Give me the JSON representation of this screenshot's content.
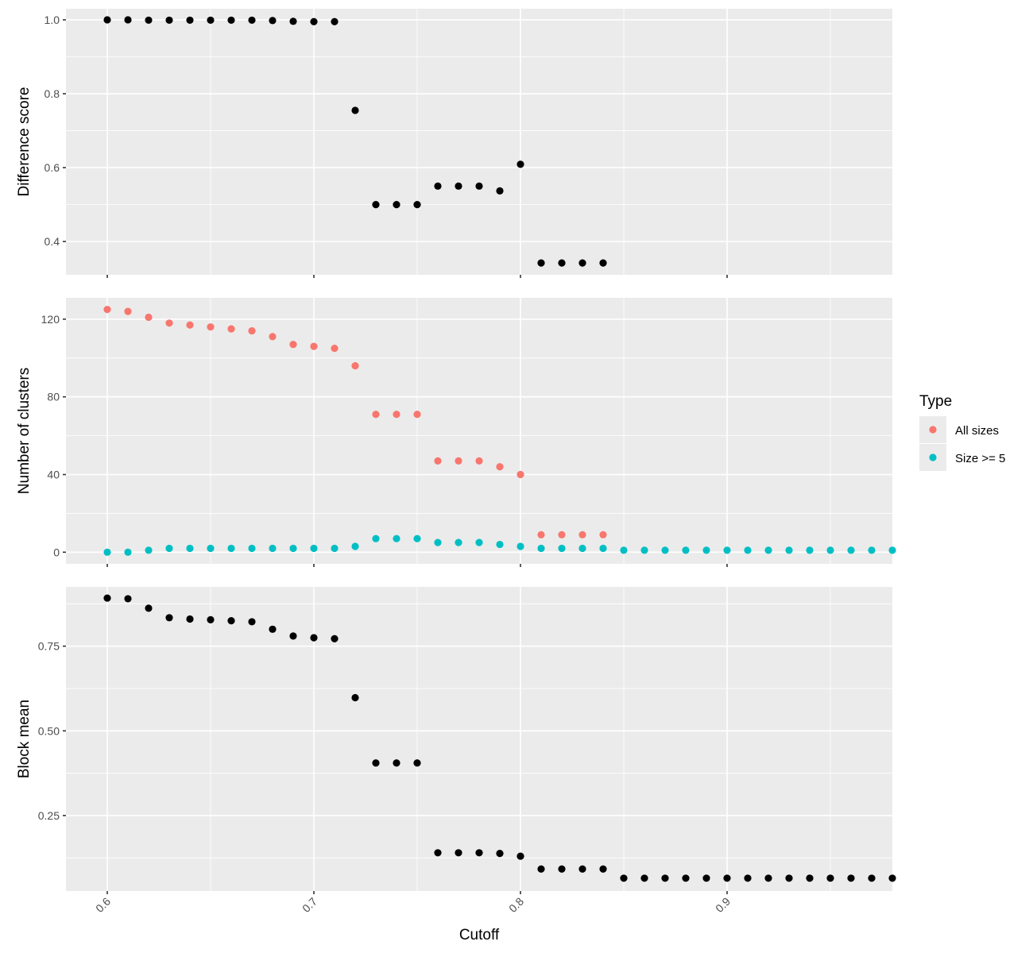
{
  "chart_data": [
    {
      "type": "scatter",
      "panel": "top",
      "ylabel": "Difference score",
      "xlabel": "",
      "xlim": [
        0.58,
        0.98
      ],
      "ylim": [
        0.31,
        1.03
      ],
      "y_ticks": [
        0.4,
        0.6,
        0.8,
        1.0
      ],
      "y_tick_labels": [
        "0.4",
        "0.6",
        "0.8",
        "1.0"
      ],
      "y_minor": [
        0.5,
        0.7,
        0.9
      ],
      "color": "#000000",
      "series": [
        {
          "x": [
            0.6,
            0.61,
            0.62,
            0.63,
            0.64,
            0.65,
            0.66,
            0.67,
            0.68,
            0.69,
            0.7,
            0.71,
            0.72,
            0.73,
            0.74,
            0.75,
            0.76,
            0.77,
            0.78,
            0.79,
            0.8,
            0.81,
            0.82,
            0.83,
            0.84
          ],
          "values": [
            1.0,
            1.0,
            0.999,
            0.999,
            0.999,
            0.999,
            0.999,
            0.999,
            0.998,
            0.996,
            0.995,
            0.995,
            0.755,
            0.5,
            0.5,
            0.5,
            0.55,
            0.55,
            0.55,
            0.537,
            0.609,
            0.342,
            0.342,
            0.342,
            0.342
          ]
        }
      ]
    },
    {
      "type": "scatter",
      "panel": "middle",
      "ylabel": "Number of clusters",
      "xlabel": "",
      "xlim": [
        0.58,
        0.98
      ],
      "ylim": [
        -6,
        131
      ],
      "y_ticks": [
        0,
        40,
        80,
        120
      ],
      "y_tick_labels": [
        "0",
        "40",
        "80",
        "120"
      ],
      "y_minor": [
        20,
        60,
        100
      ],
      "series": [
        {
          "name": "All sizes",
          "color": "#F8766D",
          "x": [
            0.6,
            0.61,
            0.62,
            0.63,
            0.64,
            0.65,
            0.66,
            0.67,
            0.68,
            0.69,
            0.7,
            0.71,
            0.72,
            0.73,
            0.74,
            0.75,
            0.76,
            0.77,
            0.78,
            0.79,
            0.8,
            0.81,
            0.82,
            0.83,
            0.84
          ],
          "values": [
            125,
            124,
            121,
            118,
            117,
            116,
            115,
            114,
            111,
            107,
            106,
            105,
            96,
            71,
            71,
            71,
            47,
            47,
            47,
            44,
            40,
            9,
            9,
            9,
            9
          ]
        },
        {
          "name": "Size >= 5",
          "color": "#00BFC4",
          "x": [
            0.6,
            0.61,
            0.62,
            0.63,
            0.64,
            0.65,
            0.66,
            0.67,
            0.68,
            0.69,
            0.7,
            0.71,
            0.72,
            0.73,
            0.74,
            0.75,
            0.76,
            0.77,
            0.78,
            0.79,
            0.8,
            0.81,
            0.82,
            0.83,
            0.84,
            0.85,
            0.86,
            0.87,
            0.88,
            0.89,
            0.9,
            0.91,
            0.92,
            0.93,
            0.94,
            0.95,
            0.96,
            0.97,
            0.98
          ],
          "values": [
            0,
            0,
            1,
            2,
            2,
            2,
            2,
            2,
            2,
            2,
            2,
            2,
            3,
            7,
            7,
            7,
            5,
            5,
            5,
            4,
            3,
            2,
            2,
            2,
            2,
            1,
            1,
            1,
            1,
            1,
            1,
            1,
            1,
            1,
            1,
            1,
            1,
            1,
            1
          ]
        }
      ]
    },
    {
      "type": "scatter",
      "panel": "bottom",
      "ylabel": "Block mean",
      "xlabel": "Cutoff",
      "xlim": [
        0.58,
        0.98
      ],
      "ylim": [
        0.027,
        0.925
      ],
      "y_ticks": [
        0.25,
        0.5,
        0.75
      ],
      "y_tick_labels": [
        "0.25",
        "0.50",
        "0.75"
      ],
      "y_minor": [
        0.125,
        0.375,
        0.625,
        0.875
      ],
      "color": "#000000",
      "series": [
        {
          "x": [
            0.6,
            0.61,
            0.62,
            0.63,
            0.64,
            0.65,
            0.66,
            0.67,
            0.68,
            0.69,
            0.7,
            0.71,
            0.72,
            0.73,
            0.74,
            0.75,
            0.76,
            0.77,
            0.78,
            0.79,
            0.8,
            0.81,
            0.82,
            0.83,
            0.84,
            0.85,
            0.86,
            0.87,
            0.88,
            0.89,
            0.9,
            0.91,
            0.92,
            0.93,
            0.94,
            0.95,
            0.96,
            0.97,
            0.98
          ],
          "values": [
            0.892,
            0.89,
            0.862,
            0.834,
            0.83,
            0.828,
            0.825,
            0.822,
            0.8,
            0.78,
            0.775,
            0.772,
            0.598,
            0.405,
            0.405,
            0.405,
            0.14,
            0.14,
            0.14,
            0.138,
            0.13,
            0.092,
            0.092,
            0.092,
            0.092,
            0.065,
            0.065,
            0.065,
            0.065,
            0.065,
            0.065,
            0.065,
            0.065,
            0.065,
            0.065,
            0.065,
            0.065,
            0.065,
            0.065
          ]
        }
      ]
    }
  ],
  "x_axis": {
    "ticks": [
      0.6,
      0.7,
      0.8,
      0.9
    ],
    "tick_labels": [
      "0.6",
      "0.7",
      "0.8",
      "0.9"
    ],
    "minor": [
      0.65,
      0.75,
      0.85,
      0.95
    ]
  },
  "legend": {
    "title": "Type",
    "entries": [
      {
        "label": "All sizes",
        "color": "#F8766D"
      },
      {
        "label": "Size >= 5",
        "color": "#00BFC4"
      }
    ],
    "placement": "right"
  }
}
